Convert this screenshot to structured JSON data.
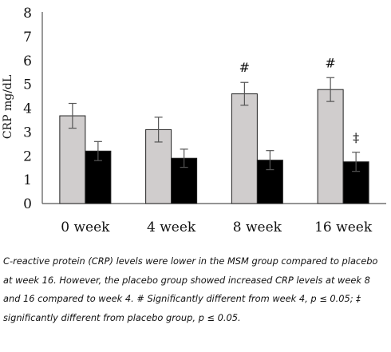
{
  "chart_data": {
    "type": "bar",
    "categories": [
      "0 week",
      "4 week",
      "8 week",
      "16 week"
    ],
    "ylabel": "CRP mg/dL",
    "xlabel": "",
    "ylim": [
      0,
      8
    ],
    "yticks": [
      "0",
      "1",
      "2",
      "3",
      "4",
      "5",
      "6",
      "7",
      "8"
    ],
    "grid": false,
    "legend": "none",
    "series": [
      {
        "color": "#d0cdcd",
        "values": [
          3.68,
          3.1,
          4.6,
          4.78
        ],
        "errors": [
          0.52,
          0.52,
          0.48,
          0.5
        ],
        "annotations": [
          "",
          "",
          "#",
          "#"
        ]
      },
      {
        "color": "#000000",
        "values": [
          2.2,
          1.9,
          1.82,
          1.75
        ],
        "errors": [
          0.4,
          0.38,
          0.4,
          0.4
        ],
        "annotations": [
          "",
          "",
          "",
          "‡"
        ]
      }
    ]
  },
  "caption": "C-reactive protein (CRP) levels were lower in the MSM group compared to placebo at week 16. However, the placebo group showed increased CRP levels at week 8 and 16 compared to week 4. # Significantly different from week 4, p ≤ 0.05; ‡ significantly different from placebo group, p ≤ 0.05."
}
